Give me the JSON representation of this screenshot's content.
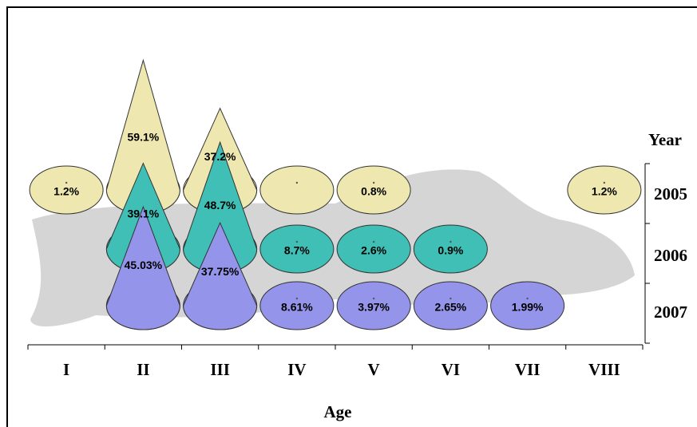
{
  "chart_data": {
    "type": "cone3d",
    "x_label": "Age",
    "series_axis_label": "Year",
    "categories": [
      "I",
      "II",
      "III",
      "IV",
      "V",
      "VI",
      "VII",
      "VIII"
    ],
    "series": [
      {
        "name": "2005",
        "color": "#eee8b0",
        "values": [
          1.2,
          59.1,
          37.2,
          0.5,
          0.8,
          null,
          null,
          1.2
        ],
        "value_labels": [
          "1.2%",
          "59.1%",
          "37.2%",
          null,
          "0.8%",
          null,
          null,
          "1.2%"
        ]
      },
      {
        "name": "2006",
        "color": "#3fbfb5",
        "values": [
          null,
          39.1,
          48.7,
          8.7,
          2.6,
          0.9,
          null,
          null
        ],
        "value_labels": [
          null,
          "39.1%",
          "48.7%",
          "8.7%",
          "2.6%",
          "0.9%",
          null,
          null
        ]
      },
      {
        "name": "2007",
        "color": "#9494ea",
        "values": [
          null,
          45.03,
          37.75,
          8.61,
          3.97,
          2.65,
          1.99,
          null
        ],
        "value_labels": [
          null,
          "45.03%",
          "37.75%",
          "8.61%",
          "3.97%",
          "2.65%",
          "1.99%",
          null
        ]
      }
    ]
  }
}
